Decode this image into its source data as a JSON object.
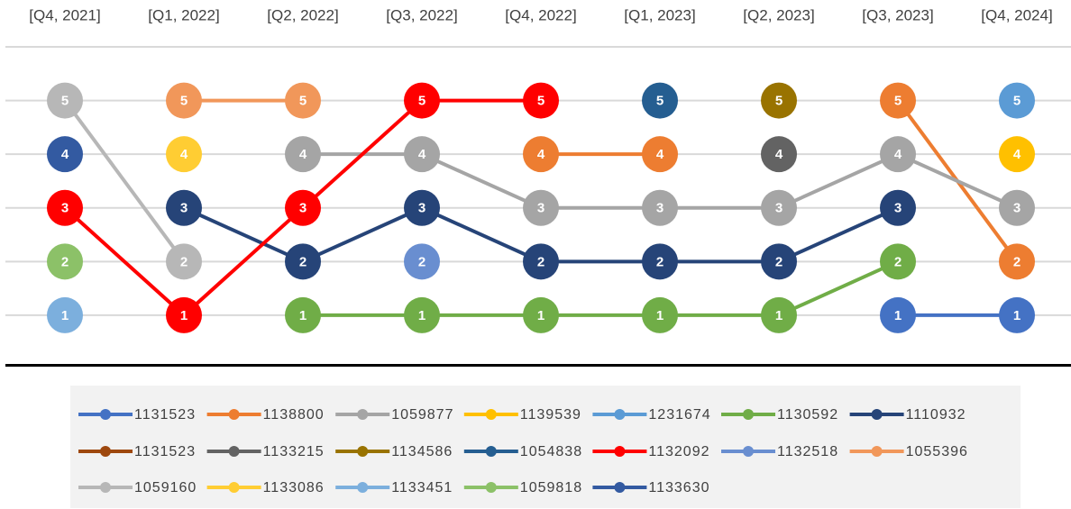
{
  "chart_data": {
    "type": "line",
    "categories": [
      "[Q4, 2021]",
      "[Q1, 2022]",
      "[Q2, 2022]",
      "[Q3, 2022]",
      "[Q4, 2022]",
      "[Q1, 2023]",
      "[Q2, 2023]",
      "[Q3, 2023]",
      "[Q4, 2024]"
    ],
    "ylim": [
      0,
      6
    ],
    "yticks": [
      0,
      1,
      2,
      3,
      4,
      5,
      6
    ],
    "grid": true,
    "series": [
      {
        "name": "1131523",
        "color": "#4472c4",
        "values": [
          null,
          null,
          null,
          null,
          null,
          null,
          null,
          1,
          1
        ]
      },
      {
        "name": "1138800",
        "color": "#ed7d31",
        "values": [
          null,
          null,
          null,
          null,
          4,
          4,
          null,
          5,
          2
        ]
      },
      {
        "name": "1059877",
        "color": "#a5a5a5",
        "values": [
          null,
          null,
          4,
          4,
          3,
          3,
          3,
          4,
          3
        ]
      },
      {
        "name": "1139539",
        "color": "#ffc000",
        "values": [
          null,
          null,
          null,
          null,
          null,
          null,
          null,
          null,
          4
        ]
      },
      {
        "name": "1231674",
        "color": "#5b9bd5",
        "values": [
          null,
          null,
          null,
          null,
          null,
          null,
          null,
          null,
          5
        ]
      },
      {
        "name": "1130592",
        "color": "#70ad47",
        "values": [
          null,
          null,
          1,
          1,
          1,
          1,
          1,
          2,
          null
        ]
      },
      {
        "name": "1110932",
        "color": "#264478",
        "values": [
          null,
          3,
          2,
          3,
          2,
          2,
          2,
          3,
          null
        ]
      },
      {
        "name": "1131523",
        "color": "#9e480e",
        "values": [
          null,
          null,
          null,
          null,
          null,
          null,
          null,
          null,
          null
        ]
      },
      {
        "name": "1133215",
        "color": "#636363",
        "values": [
          null,
          null,
          null,
          null,
          null,
          null,
          4,
          null,
          null
        ]
      },
      {
        "name": "1134586",
        "color": "#997300",
        "values": [
          null,
          null,
          null,
          null,
          null,
          null,
          5,
          null,
          null
        ]
      },
      {
        "name": "1054838",
        "color": "#255e91",
        "values": [
          null,
          null,
          null,
          null,
          null,
          5,
          null,
          null,
          null
        ]
      },
      {
        "name": "1132092",
        "color": "#ff0000",
        "values": [
          3,
          1,
          3,
          5,
          5,
          null,
          null,
          null,
          null
        ]
      },
      {
        "name": "1132518",
        "color": "#698ed0",
        "values": [
          null,
          null,
          null,
          2,
          null,
          null,
          null,
          null,
          null
        ]
      },
      {
        "name": "1055396",
        "color": "#f1975a",
        "values": [
          null,
          5,
          5,
          null,
          null,
          null,
          null,
          null,
          null
        ]
      },
      {
        "name": "1059160",
        "color": "#b7b7b7",
        "values": [
          5,
          2,
          null,
          null,
          null,
          null,
          null,
          null,
          null
        ]
      },
      {
        "name": "1133086",
        "color": "#ffcd33",
        "values": [
          null,
          4,
          null,
          null,
          null,
          null,
          null,
          null,
          null
        ]
      },
      {
        "name": "1133451",
        "color": "#7cafdd",
        "values": [
          1,
          null,
          null,
          null,
          null,
          null,
          null,
          null,
          null
        ]
      },
      {
        "name": "1059818",
        "color": "#8cc168",
        "values": [
          2,
          null,
          null,
          null,
          null,
          null,
          null,
          null,
          null
        ]
      },
      {
        "name": "1133630",
        "color": "#335aa1",
        "values": [
          4,
          null,
          null,
          null,
          null,
          null,
          null,
          null,
          null
        ]
      }
    ]
  }
}
